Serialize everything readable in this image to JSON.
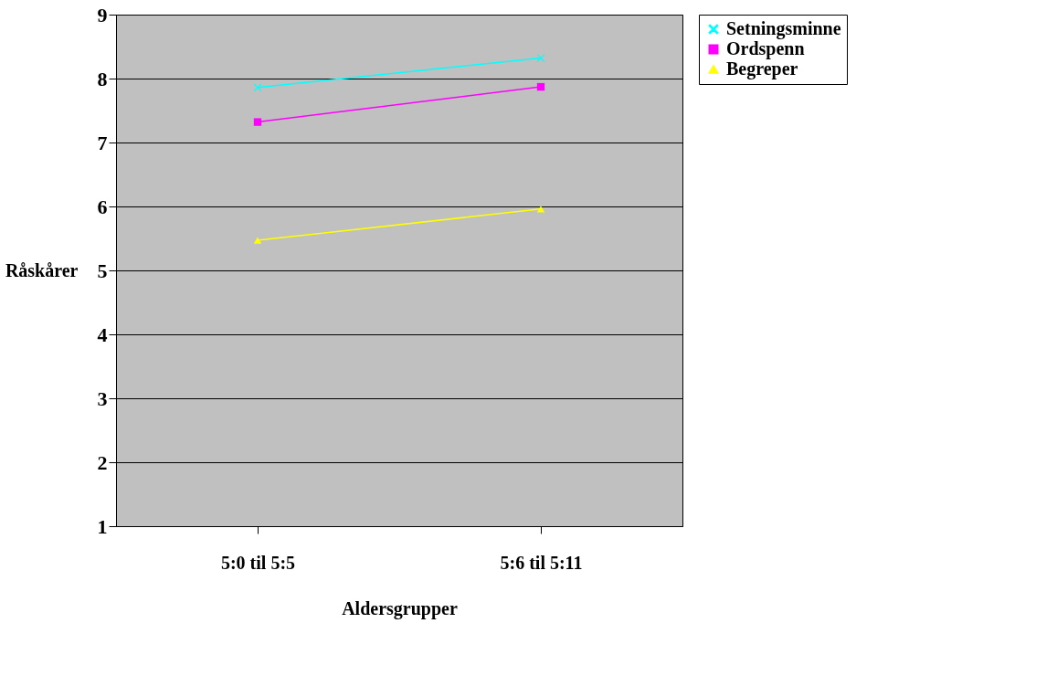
{
  "chart_data": {
    "type": "line",
    "xlabel": "Aldersgrupper",
    "ylabel": "Råskårer",
    "categories": [
      "5:0 til 5:5",
      "5:6 til 5:11"
    ],
    "series": [
      {
        "name": "Setningsminne",
        "color": "#00ffff",
        "marker": "cross",
        "values": [
          7.86,
          8.32
        ]
      },
      {
        "name": "Ordspenn",
        "color": "#ff00ff",
        "marker": "square",
        "values": [
          7.32,
          7.87
        ]
      },
      {
        "name": "Begreper",
        "color": "#ffff00",
        "marker": "triangle",
        "values": [
          5.47,
          5.96
        ]
      }
    ],
    "ylim": [
      1,
      9
    ],
    "yticks": [
      1,
      2,
      3,
      4,
      5,
      6,
      7,
      8,
      9
    ],
    "grid": "y",
    "legend": "right"
  }
}
